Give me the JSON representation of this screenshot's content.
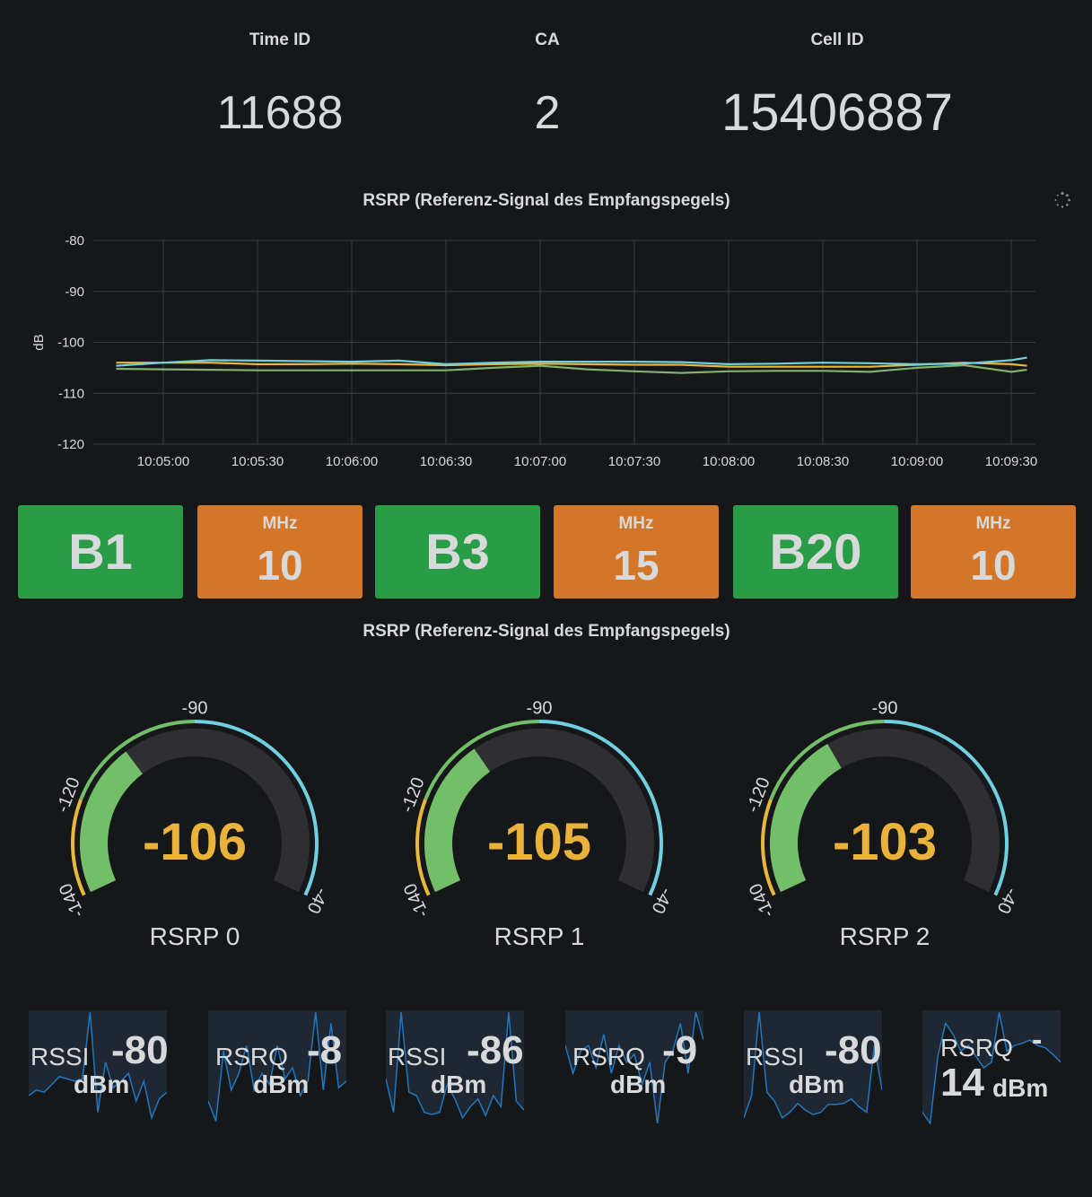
{
  "stats": [
    {
      "title": "Time ID",
      "value": "11688"
    },
    {
      "title": "CA",
      "value": "2"
    },
    {
      "title": "Cell ID",
      "value": "15406887"
    }
  ],
  "rsrp_chart_title": "RSRP (Referenz-Signal des Empfangspegels)",
  "loading_icon": "spinner-icon",
  "chart_data": {
    "type": "line",
    "title": "RSRP (Referenz-Signal des Empfangspegels)",
    "ylabel": "dB",
    "ylim": [
      -120,
      -80
    ],
    "yticks": [
      -80,
      -90,
      -100,
      -110,
      -120
    ],
    "xticks": [
      "10:05:00",
      "10:05:30",
      "10:06:00",
      "10:06:30",
      "10:07:00",
      "10:07:30",
      "10:08:00",
      "10:08:30",
      "10:09:00",
      "10:09:30"
    ],
    "grid": true,
    "x": [
      "10:04:45",
      "10:05:00",
      "10:05:15",
      "10:05:30",
      "10:05:45",
      "10:06:00",
      "10:06:15",
      "10:06:30",
      "10:06:45",
      "10:07:00",
      "10:07:15",
      "10:07:30",
      "10:07:45",
      "10:08:00",
      "10:08:15",
      "10:08:30",
      "10:08:45",
      "10:09:00",
      "10:09:15",
      "10:09:30",
      "10:09:35"
    ],
    "series": [
      {
        "color": "#eab839",
        "values": [
          -104,
          -104,
          -104,
          -104.3,
          -104.3,
          -104.2,
          -104.3,
          -104.5,
          -104.3,
          -104.2,
          -104.3,
          -104.4,
          -104.4,
          -104.8,
          -104.8,
          -104.8,
          -104.8,
          -104.4,
          -104,
          -104.3,
          -104.6
        ]
      },
      {
        "color": "#6ed0e0",
        "values": [
          -104.6,
          -104,
          -103.5,
          -103.6,
          -103.7,
          -103.8,
          -103.6,
          -104.3,
          -104,
          -103.8,
          -103.8,
          -103.8,
          -103.9,
          -104.3,
          -104.2,
          -104,
          -104.1,
          -104.3,
          -104.2,
          -103.5,
          -103
        ]
      },
      {
        "color": "#7eb26d",
        "values": [
          -105.2,
          -105.3,
          -105.4,
          -105.5,
          -105.5,
          -105.5,
          -105.5,
          -105.5,
          -105,
          -104.6,
          -105.3,
          -105.7,
          -106,
          -105.7,
          -105.6,
          -105.6,
          -105.8,
          -105,
          -104.5,
          -105.8,
          -105.4
        ]
      }
    ]
  },
  "bands": [
    {
      "band": "B1",
      "unit": "MHz",
      "bandwidth": "10"
    },
    {
      "band": "B3",
      "unit": "MHz",
      "bandwidth": "15"
    },
    {
      "band": "B20",
      "unit": "MHz",
      "bandwidth": "10"
    }
  ],
  "colors": {
    "green": "#299c46",
    "orange": "#d47628",
    "value_yellow": "#e9b23a",
    "gauge_green": "#73bf69",
    "gauge_blue": "#6ed0e0",
    "gauge_yellow": "#eab839"
  },
  "gauge_panel_title": "RSRP (Referenz-Signal des Empfangspegels)",
  "gauges": [
    {
      "label": "RSRP 0",
      "value": "-106",
      "value_num": -106,
      "min_label": "-140",
      "mid_label": "-120",
      "top_label": "-90",
      "max_label": "-40"
    },
    {
      "label": "RSRP 1",
      "value": "-105",
      "value_num": -105,
      "min_label": "-140",
      "mid_label": "-120",
      "top_label": "-90",
      "max_label": "-40"
    },
    {
      "label": "RSRP 2",
      "value": "-103",
      "value_num": -103,
      "min_label": "-140",
      "mid_label": "-120",
      "top_label": "-90",
      "max_label": "-40"
    }
  ],
  "minis": [
    {
      "label": "RSSI",
      "value": "-80",
      "unit": "dBm",
      "spark": [
        0.75,
        0.7,
        0.72,
        0.65,
        0.58,
        0.6,
        0.62,
        0.6,
        0.0,
        0.9,
        0.45,
        0.68,
        0.62,
        0.55,
        0.8,
        0.62,
        0.95,
        0.78,
        0.72
      ]
    },
    {
      "label": "RSRQ",
      "value": "-8",
      "unit": "dBm",
      "spark": [
        0.8,
        0.98,
        0.35,
        0.7,
        0.55,
        0.3,
        0.7,
        0.55,
        0.65,
        0.3,
        0.6,
        0.5,
        0.75,
        0.62,
        0.0,
        0.7,
        0.1,
        0.68,
        0.62
      ]
    },
    {
      "label": "RSSI",
      "value": "-86",
      "unit": "dBm",
      "spark": [
        0.6,
        0.9,
        0.0,
        0.72,
        0.75,
        0.9,
        0.92,
        0.9,
        0.65,
        0.78,
        0.95,
        0.85,
        0.78,
        0.93,
        0.75,
        0.85,
        0.0,
        0.8,
        0.88
      ]
    },
    {
      "label": "RSRQ",
      "value": "-9",
      "unit": "dBm",
      "spark": [
        0.3,
        0.55,
        0.35,
        0.3,
        0.5,
        0.2,
        0.55,
        0.3,
        0.45,
        0.38,
        0.65,
        0.45,
        1.0,
        0.45,
        0.35,
        0.1,
        0.55,
        0.0,
        0.25
      ]
    },
    {
      "label": "RSSI",
      "value": "-80",
      "unit": "dBm",
      "spark": [
        0.95,
        0.75,
        0.0,
        0.72,
        0.8,
        0.95,
        0.9,
        0.82,
        0.88,
        0.92,
        0.9,
        0.83,
        0.83,
        0.82,
        0.78,
        0.85,
        0.9,
        0.3,
        0.7
      ]
    },
    {
      "label": "RSRQ",
      "value": "-",
      "value2": "14",
      "unit": "dBm",
      "spark": [
        0.9,
        1.0,
        0.4,
        0.1,
        0.2,
        0.35,
        0.3,
        0.4,
        0.5,
        0.45,
        0.0,
        0.35,
        0.3,
        0.28,
        0.25,
        0.3,
        0.32,
        0.38,
        0.45
      ]
    }
  ]
}
